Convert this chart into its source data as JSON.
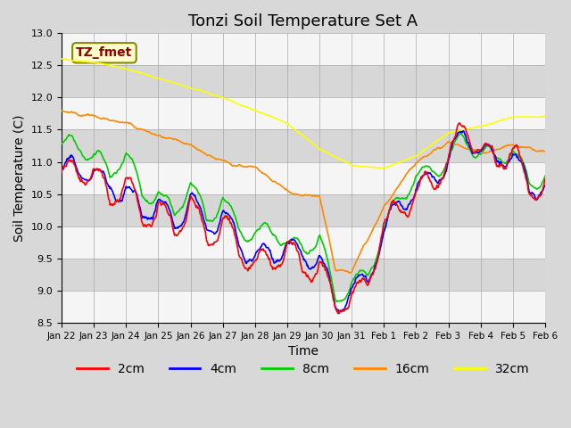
{
  "title": "Tonzi Soil Temperature Set A",
  "xlabel": "Time",
  "ylabel": "Soil Temperature (C)",
  "ylim": [
    8.5,
    13.0
  ],
  "legend_label": "TZ_fmet",
  "series_labels": [
    "2cm",
    "4cm",
    "8cm",
    "16cm",
    "32cm"
  ],
  "series_colors": [
    "#ff0000",
    "#0000ff",
    "#00cc00",
    "#ff8800",
    "#ffff00"
  ],
  "xtick_labels": [
    "Jan 22",
    "Jan 23",
    "Jan 24",
    "Jan 25",
    "Jan 26",
    "Jan 27",
    "Jan 28",
    "Jan 29",
    "Jan 30",
    "Jan 31",
    "Feb 1",
    "Feb 2",
    "Feb 3",
    "Feb 4",
    "Feb 5",
    "Feb 6"
  ],
  "n_days": 15,
  "linewidth": 1.2,
  "title_fontsize": 13,
  "axis_fontsize": 10,
  "legend_fontsize": 10
}
